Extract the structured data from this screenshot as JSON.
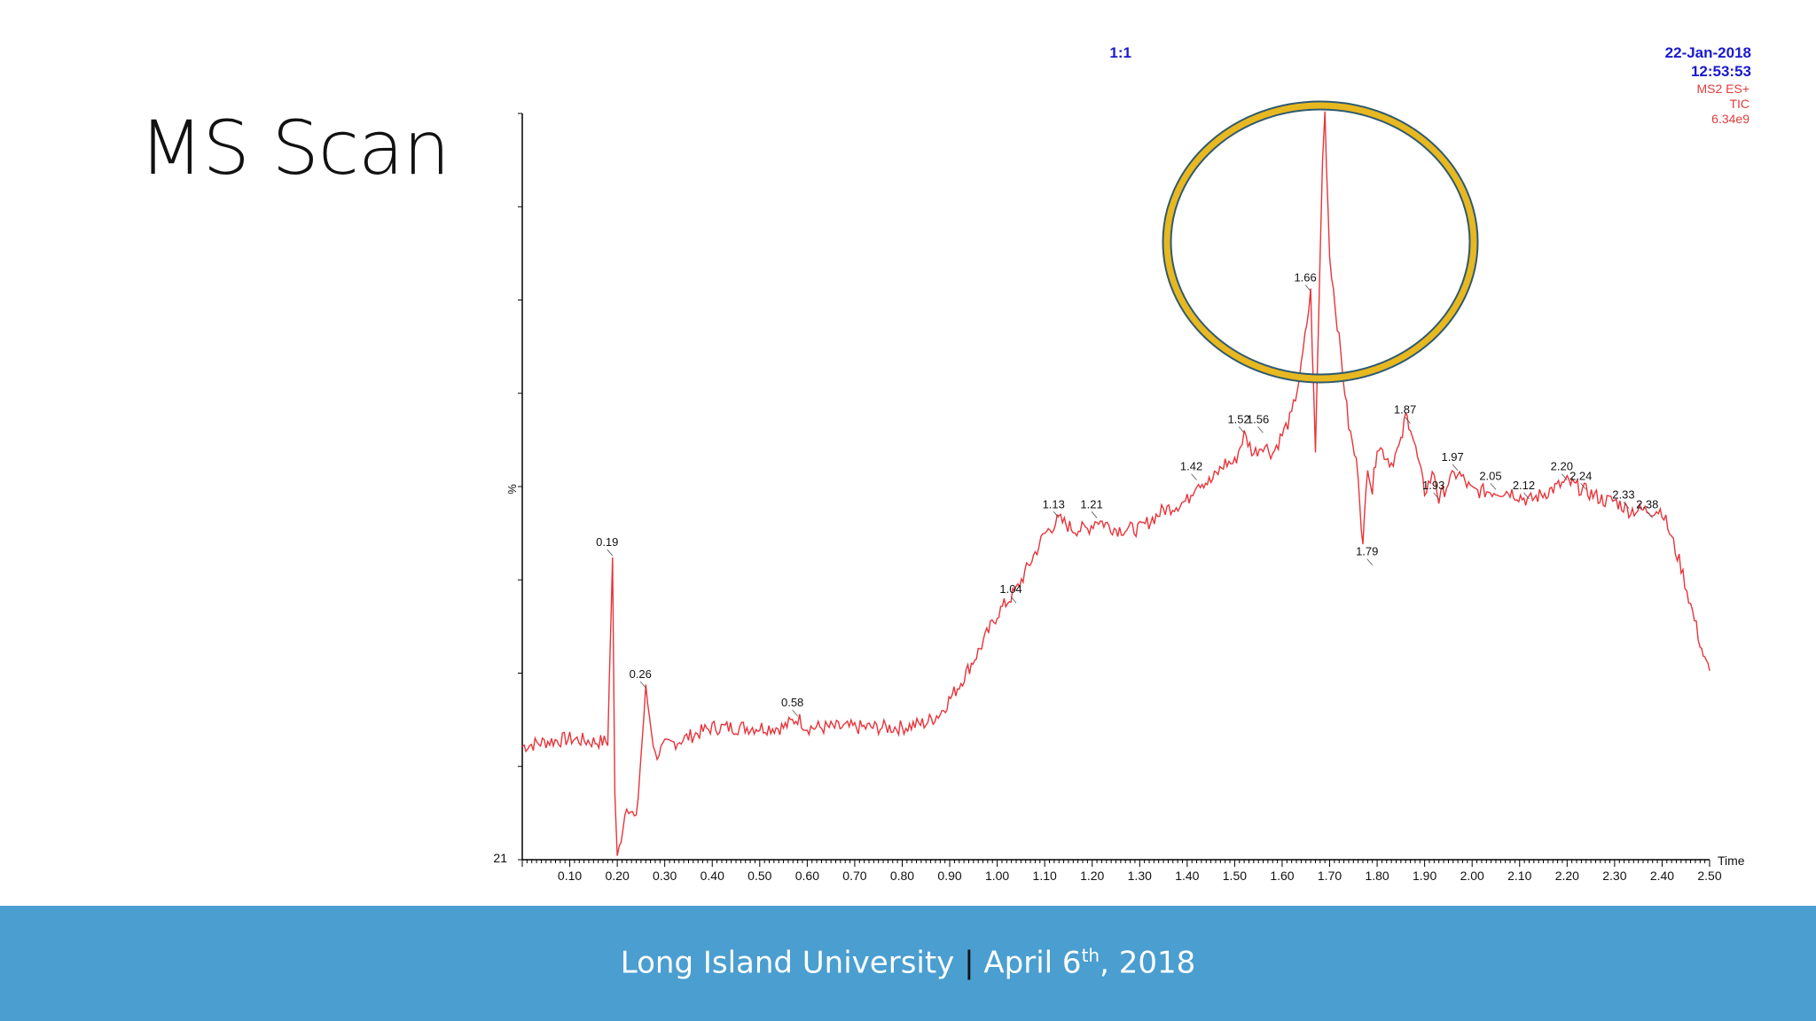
{
  "slide": {
    "title": "MS Scan"
  },
  "footer": {
    "org": "Long Island University",
    "sep": "|",
    "date_pre": "April 6",
    "date_sup": "th",
    "date_post": ", 2018"
  },
  "header": {
    "scale": "1:1",
    "date": "22-Jan-2018",
    "time": "12:53:53",
    "scan_lines": [
      "MS2 ES+",
      "TIC",
      "6.34e9"
    ]
  },
  "colors": {
    "trace": "#e8343a",
    "header_blue": "#1a1acc",
    "header_red": "#e23b3b",
    "circle_fill": "#e8b820",
    "circle_edge": "#2f5a6e",
    "footer_bg": "#4a9ed0"
  },
  "chart_data": {
    "type": "line",
    "title": "",
    "xlabel": "Time",
    "ylabel": "%",
    "xlim": [
      0.0,
      2.5
    ],
    "ylim": [
      21,
      100
    ],
    "y_min_label": "21",
    "x_ticks": [
      "0.10",
      "0.20",
      "0.30",
      "0.40",
      "0.50",
      "0.60",
      "0.70",
      "0.80",
      "0.90",
      "1.00",
      "1.10",
      "1.20",
      "1.30",
      "1.40",
      "1.50",
      "1.60",
      "1.70",
      "1.80",
      "1.90",
      "2.00",
      "2.10",
      "2.20",
      "2.30",
      "2.40",
      "2.50"
    ],
    "series": [
      {
        "x": [
          0.0,
          0.05,
          0.1,
          0.15,
          0.18,
          0.19,
          0.195,
          0.2,
          0.22,
          0.24,
          0.26,
          0.28,
          0.3,
          0.35,
          0.4,
          0.45,
          0.5,
          0.55,
          0.58,
          0.6,
          0.65,
          0.7,
          0.75,
          0.8,
          0.85,
          0.88,
          0.92,
          0.96,
          1.0,
          1.04,
          1.08,
          1.1,
          1.13,
          1.16,
          1.19,
          1.21,
          1.25,
          1.3,
          1.35,
          1.4,
          1.42,
          1.45,
          1.48,
          1.5,
          1.52,
          1.54,
          1.56,
          1.58,
          1.6,
          1.62,
          1.64,
          1.66,
          1.67,
          1.68,
          1.685,
          1.69,
          1.7,
          1.72,
          1.74,
          1.76,
          1.77,
          1.78,
          1.79,
          1.8,
          1.83,
          1.85,
          1.86,
          1.87,
          1.9,
          1.92,
          1.93,
          1.95,
          1.97,
          2.0,
          2.05,
          2.08,
          2.12,
          2.16,
          2.2,
          2.24,
          2.28,
          2.3,
          2.33,
          2.36,
          2.38,
          2.4,
          2.42,
          2.44,
          2.46,
          2.48,
          2.49,
          2.5
        ],
        "y": [
          33,
          33.5,
          33.8,
          33.5,
          33.5,
          53,
          28,
          21,
          27,
          25,
          39,
          32,
          33,
          34,
          35,
          35,
          35,
          35,
          36,
          35,
          35,
          35,
          35,
          35,
          35.5,
          36.5,
          39.5,
          43,
          47,
          49.5,
          53.5,
          55.5,
          57,
          56,
          56,
          57,
          56,
          56,
          58,
          59,
          61,
          61,
          63,
          63,
          66,
          64,
          65,
          64,
          66,
          68,
          73,
          81,
          64,
          85,
          95,
          100,
          85,
          76,
          67,
          62,
          54,
          63,
          60,
          65,
          63,
          65,
          68,
          67,
          60,
          62,
          59,
          61,
          62,
          60,
          60,
          60,
          59,
          60,
          61,
          60,
          59,
          59,
          58,
          58,
          58,
          58,
          55,
          52,
          48,
          44,
          42,
          41
        ]
      }
    ],
    "peak_labels": [
      {
        "label": "0.19",
        "x": 0.19,
        "y": 53
      },
      {
        "label": "0.26",
        "x": 0.26,
        "y": 39
      },
      {
        "label": "0.58",
        "x": 0.58,
        "y": 36
      },
      {
        "label": "1.04",
        "x": 1.04,
        "y": 48
      },
      {
        "label": "1.13",
        "x": 1.13,
        "y": 57
      },
      {
        "label": "1.21",
        "x": 1.21,
        "y": 57
      },
      {
        "label": "1.42",
        "x": 1.42,
        "y": 61
      },
      {
        "label": "1.52",
        "x": 1.52,
        "y": 66
      },
      {
        "label": "1.56",
        "x": 1.56,
        "y": 66
      },
      {
        "label": "1.66",
        "x": 1.66,
        "y": 81
      },
      {
        "label": "1.79",
        "x": 1.79,
        "y": 52
      },
      {
        "label": "1.87",
        "x": 1.87,
        "y": 67
      },
      {
        "label": "1.93",
        "x": 1.93,
        "y": 59
      },
      {
        "label": "1.97",
        "x": 1.97,
        "y": 62
      },
      {
        "label": "2.05",
        "x": 2.05,
        "y": 60
      },
      {
        "label": "2.12",
        "x": 2.12,
        "y": 59
      },
      {
        "label": "2.20",
        "x": 2.2,
        "y": 61
      },
      {
        "label": "2.24",
        "x": 2.24,
        "y": 60
      },
      {
        "label": "2.33",
        "x": 2.33,
        "y": 58
      },
      {
        "label": "2.38",
        "x": 2.38,
        "y": 57
      }
    ]
  }
}
